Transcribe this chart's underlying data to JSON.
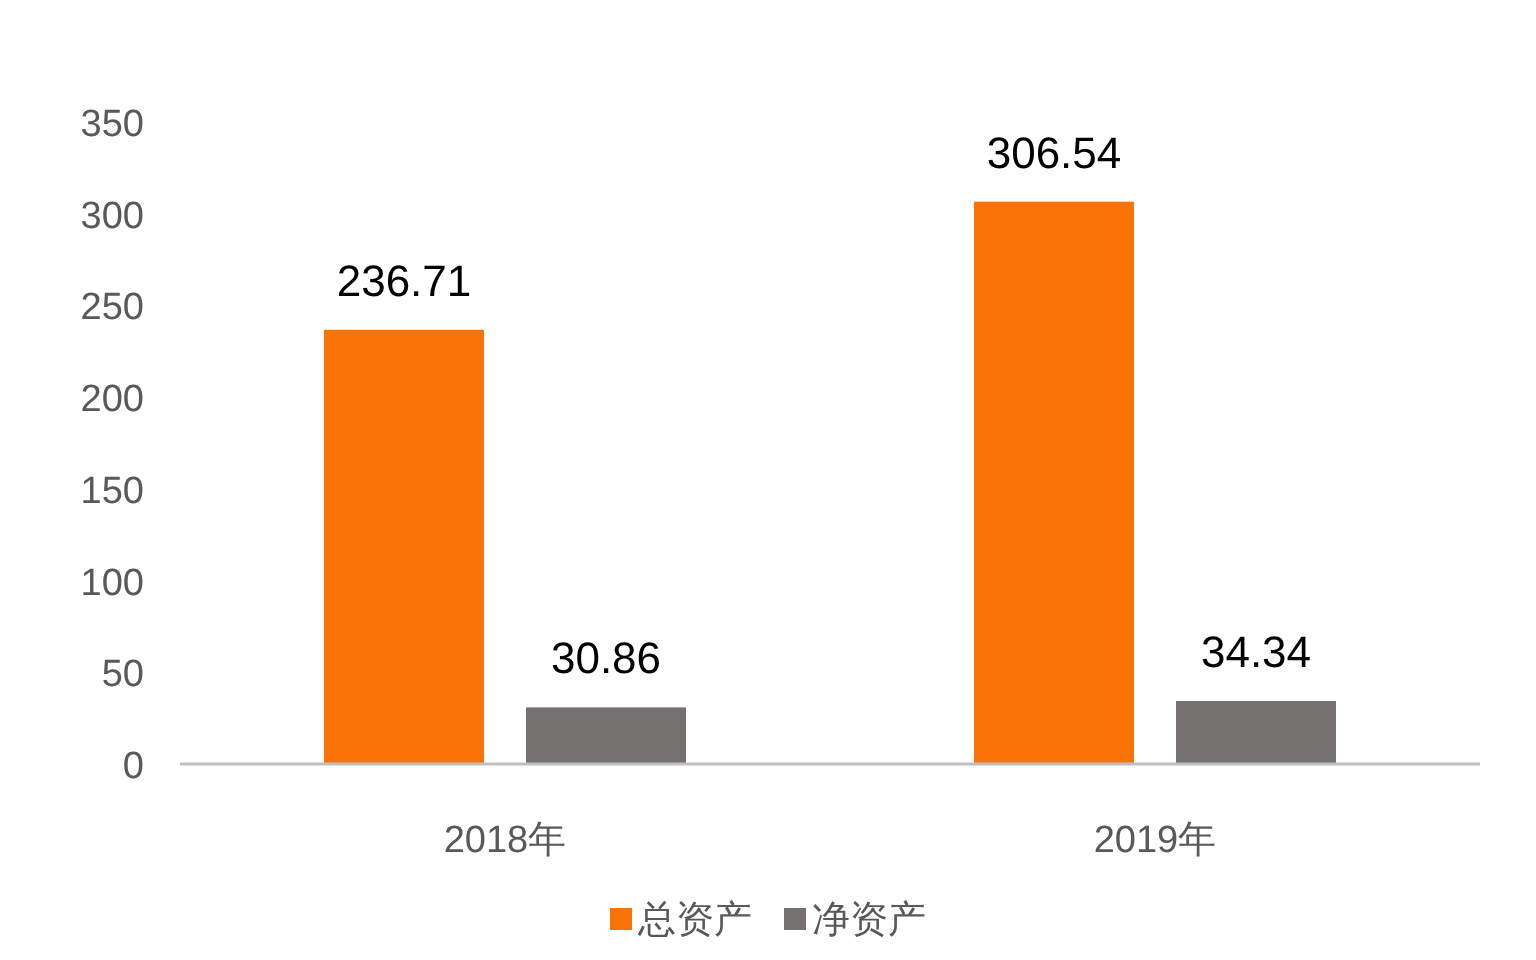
{
  "chart_data": {
    "type": "bar",
    "categories": [
      "2018年",
      "2019年"
    ],
    "series": [
      {
        "name": "总资产",
        "color": "#f97306",
        "values": [
          236.71,
          306.54
        ]
      },
      {
        "name": "净资产",
        "color": "#767171",
        "values": [
          30.86,
          34.34
        ]
      }
    ],
    "ylim": [
      0,
      350
    ],
    "yticks": [
      0,
      50,
      100,
      150,
      200,
      250,
      300,
      350
    ],
    "data_labels": true,
    "legend": "bottom"
  }
}
